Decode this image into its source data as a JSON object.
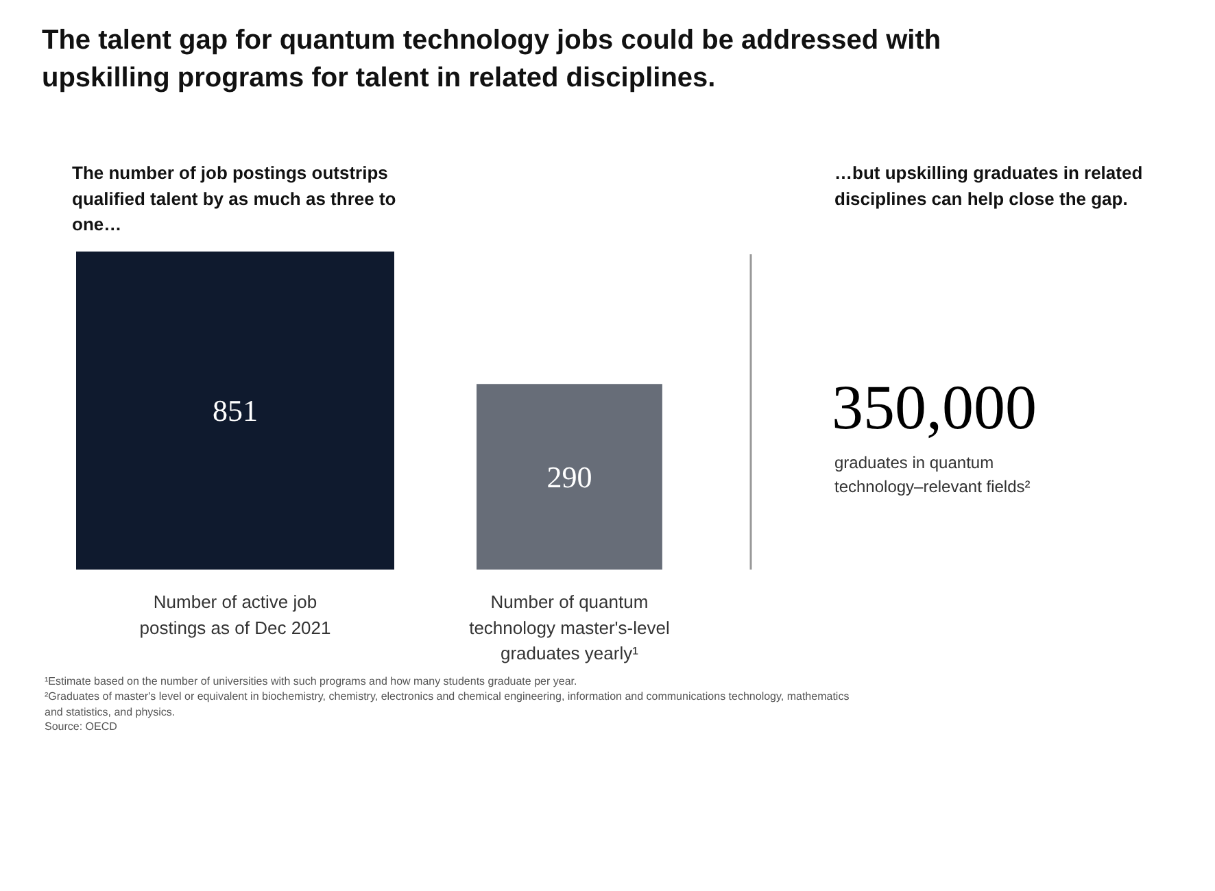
{
  "chart_data": {
    "type": "other",
    "title": "The talent gap for quantum technology jobs could be addressed with upskilling programs for talent in related disciplines.",
    "subtitle": "The number of job postings outstrips qualified talent by as much as three to one…",
    "categories": [
      "Number of active job postings as of Dec 2021",
      "Number of quantum technology master's-level graduates yearly¹"
    ],
    "values": [
      851,
      290
    ],
    "colors": [
      "#0f1a2e",
      "#676d78"
    ],
    "data_labels": true,
    "annotations": [
      "…but upskilling graduates in related disciplines can help close the gap.",
      "350,000",
      "graduates in quantum technology–relevant fields²",
      "¹Estimate based on the number of universities with such programs and how many students graduate per year.",
      "²Graduates of master's level or equivalent in biochemistry, chemistry, electronics and chemical engineering, information and communications technology, mathematics and statistics, and physics.",
      "Source: OECD"
    ]
  }
}
